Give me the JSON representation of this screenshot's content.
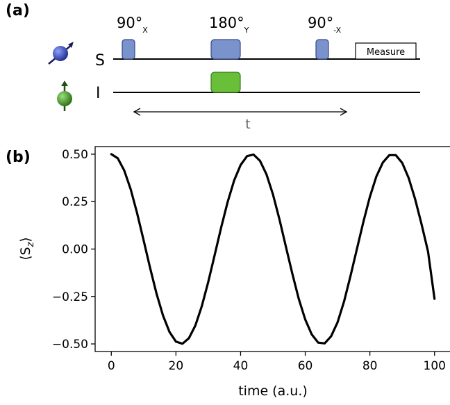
{
  "panel_a": {
    "label": "(a)",
    "channels": [
      {
        "label": "S",
        "spin_color": "#3b4fb0"
      },
      {
        "label": "I",
        "spin_color": "#4aa02a"
      }
    ],
    "pulses": [
      {
        "channel": "S",
        "angle": "90°",
        "phase": "X",
        "color": "#7b93cc"
      },
      {
        "channel": "S",
        "angle": "180°",
        "phase": "Y",
        "color": "#7b93cc"
      },
      {
        "channel": "S",
        "angle": "90°",
        "phase": "-X",
        "color": "#7b93cc"
      },
      {
        "channel": "I",
        "angle": "",
        "phase": "",
        "color": "#6abf3a"
      }
    ],
    "measure_label": "Measure",
    "duration_label": "t"
  },
  "panel_b": {
    "label": "(b)"
  },
  "chart_data": {
    "type": "line",
    "title": "",
    "xlabel": "time (a.u.)",
    "ylabel": "⟨S",
    "ylabel_sub": "z",
    "ylabel_close": "⟩",
    "xlim": [
      -5,
      105
    ],
    "ylim": [
      -0.54,
      0.54
    ],
    "xticks": [
      0,
      20,
      40,
      60,
      80,
      100
    ],
    "xtick_labels": [
      "0",
      "20",
      "40",
      "60",
      "80",
      "100"
    ],
    "yticks": [
      0.5,
      0.25,
      0.0,
      -0.25,
      -0.5
    ],
    "ytick_labels": [
      "0.50",
      "0.25",
      "0.00",
      "−0.25",
      "−0.50"
    ],
    "grid": false,
    "series": [
      {
        "color": "#000000",
        "x": [
          0,
          2,
          4,
          6,
          8,
          10,
          12,
          14,
          16,
          18,
          20,
          22,
          24,
          26,
          28,
          30,
          32,
          34,
          36,
          38,
          40,
          42,
          44,
          46,
          48,
          50,
          52,
          54,
          56,
          58,
          60,
          62,
          64,
          66,
          68,
          70,
          72,
          74,
          76,
          78,
          80,
          82,
          84,
          86,
          88,
          90,
          92,
          94,
          96,
          98,
          100
        ],
        "y": [
          0.5,
          0.478,
          0.414,
          0.315,
          0.188,
          0.046,
          -0.099,
          -0.235,
          -0.35,
          -0.437,
          -0.488,
          -0.499,
          -0.47,
          -0.403,
          -0.301,
          -0.173,
          -0.03,
          0.114,
          0.248,
          0.361,
          0.443,
          0.49,
          0.498,
          0.465,
          0.394,
          0.289,
          0.158,
          0.014,
          -0.129,
          -0.262,
          -0.371,
          -0.45,
          -0.493,
          -0.497,
          -0.46,
          -0.386,
          -0.277,
          -0.142,
          0.001,
          0.144,
          0.275,
          0.382,
          0.456,
          0.495,
          0.495,
          0.454,
          0.374,
          0.263,
          0.13,
          -0.014,
          -0.262
        ]
      }
    ]
  }
}
